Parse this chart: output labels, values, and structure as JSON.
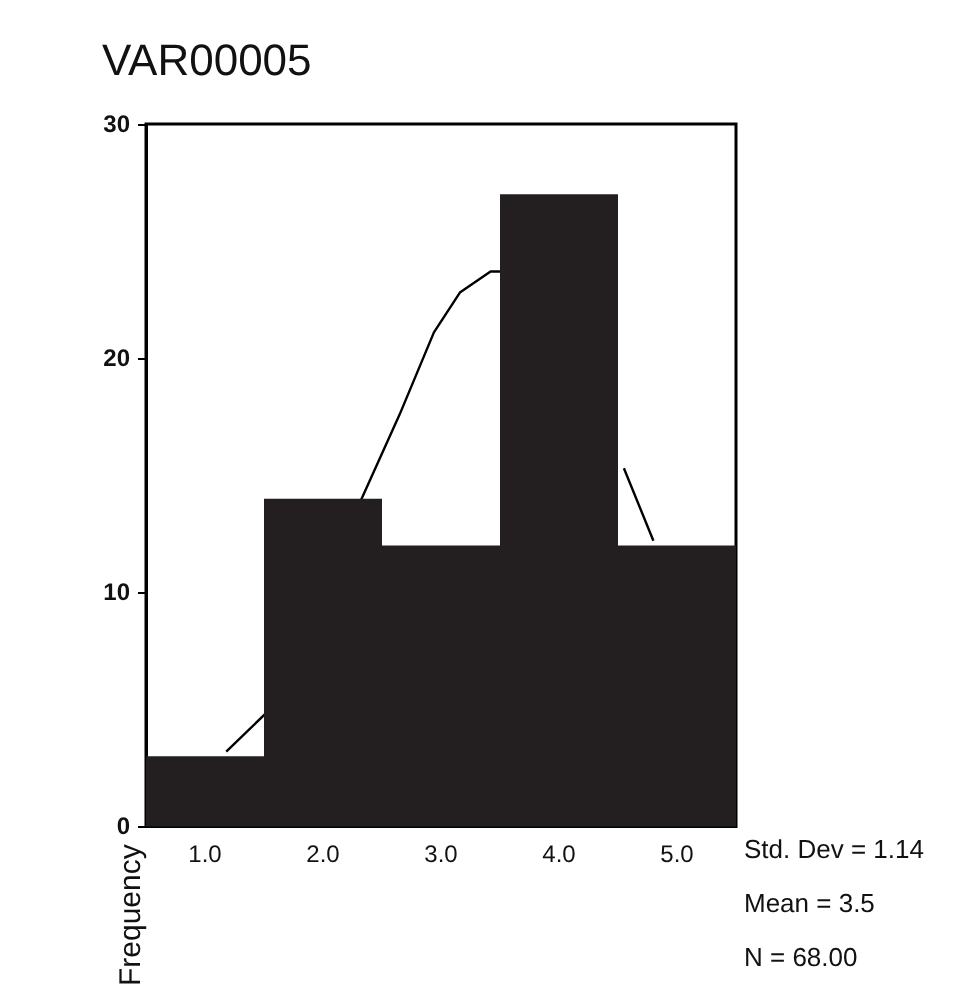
{
  "chart_data": {
    "type": "histogram",
    "title": "VAR00005",
    "ylabel": "Frequency",
    "bins": [
      0.5,
      1.5,
      2.5,
      3.5,
      4.5,
      5.5
    ],
    "values": [
      3,
      14,
      12,
      27,
      12
    ],
    "color": "#231f20",
    "series": [
      {
        "type": "line",
        "color": "#000000",
        "x": [
          1.18,
          1.55,
          1.6,
          2.31,
          2.65,
          2.94,
          3.16,
          3.42,
          3.53,
          3.6,
          4.55,
          4.8
        ],
        "values": [
          3.2,
          5,
          null,
          13.8,
          17.6,
          21.1,
          22.8,
          23.7,
          23.7,
          null,
          15.3,
          12.2
        ]
      }
    ],
    "xlim": [
      0.5,
      5.5
    ],
    "xticks": [
      {
        "value": 1,
        "label": "1.0"
      },
      {
        "value": 2,
        "label": "2.0"
      },
      {
        "value": 3,
        "label": "3.0"
      },
      {
        "value": 4,
        "label": "4.0"
      },
      {
        "value": 5,
        "label": "5.0"
      }
    ],
    "ylim": [
      0,
      30
    ],
    "yticks": [
      0,
      10,
      20,
      30
    ],
    "grid": false,
    "annotations": [
      "Std. Dev = 1.14",
      "Mean = 3.5",
      "N = 68.00"
    ]
  }
}
